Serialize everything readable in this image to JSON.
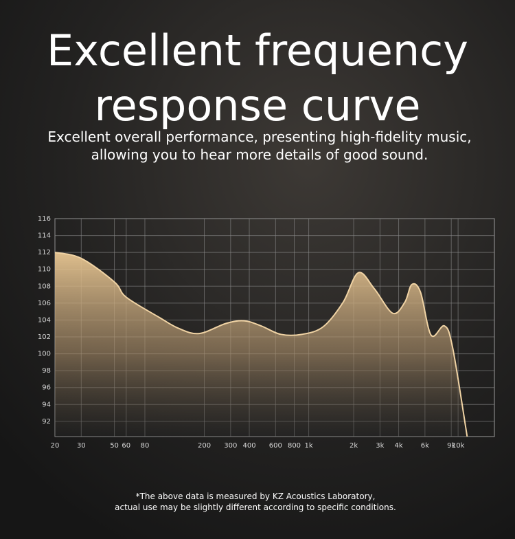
{
  "chart_data": {
    "type": "area",
    "title": [
      "Excellent frequency",
      "response curve"
    ],
    "subtitle": [
      "Excellent overall performance, presenting high-fidelity music,",
      "allowing you to hear more details of good sound."
    ],
    "note": [
      "*The above data is measured by KZ Acoustics Laboratory,",
      "actual use may be slightly different according to specific conditions."
    ],
    "x": [
      20,
      30,
      50,
      60,
      100,
      135,
      185,
      280,
      370,
      480,
      650,
      900,
      1250,
      1700,
      2150,
      2750,
      3650,
      4400,
      4900,
      5600,
      6600,
      8100,
      9200,
      11500
    ],
    "series": [
      {
        "color": "#f0d3a4",
        "values": [
          112.0,
          111.3,
          108.5,
          106.7,
          104.3,
          103.0,
          102.4,
          103.6,
          103.9,
          103.3,
          102.3,
          102.3,
          103.2,
          106.1,
          109.6,
          107.7,
          104.8,
          106.1,
          108.2,
          107.3,
          102.2,
          103.3,
          100.7,
          90.2
        ]
      }
    ],
    "xscale": "log",
    "xlim": [
      20,
      17500
    ],
    "ylim": [
      90.2,
      116
    ],
    "xticks": [
      20,
      30,
      50,
      60,
      80,
      200,
      300,
      400,
      600,
      800,
      {
        "value": 1000,
        "label": "1k"
      },
      {
        "value": 2000,
        "label": "2k"
      },
      {
        "value": 3000,
        "label": "3k"
      },
      {
        "value": 4000,
        "label": "4k"
      },
      {
        "value": 6000,
        "label": "6k"
      },
      {
        "value": 9000,
        "label": "9k"
      },
      {
        "value": 10000,
        "label": "10k"
      }
    ],
    "yticks": [
      92,
      94,
      96,
      98,
      100,
      102,
      104,
      106,
      108,
      110,
      112,
      114,
      116
    ],
    "grid": true
  }
}
